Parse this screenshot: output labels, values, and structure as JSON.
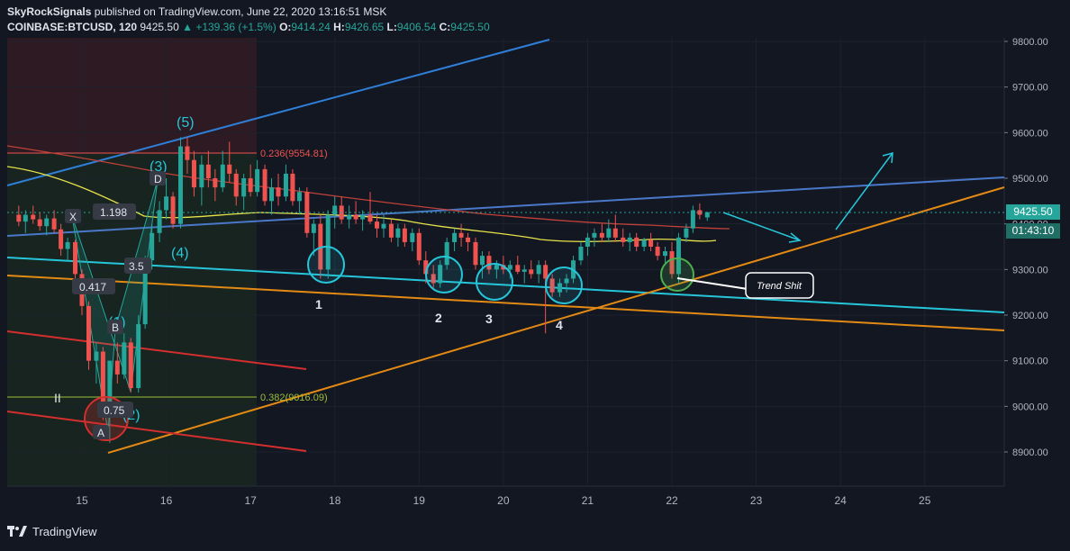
{
  "header": {
    "publisher": "SkyRockSignals",
    "published_text": "published on TradingView.com, June 22, 2020 13:16:51 MSK",
    "symbol": "COINBASE:BTCUSD, 120",
    "last": "9425.50",
    "change": "▲ +139.36 (+1.5%)",
    "o_label": "O:",
    "o": "9414.24",
    "h_label": "H:",
    "h": "9426.65",
    "l_label": "L:",
    "l": "9406.54",
    "c_label": "C:",
    "c": "9425.50"
  },
  "price_tags": {
    "last": "9425.50",
    "countdown": "01:43:10"
  },
  "footer": {
    "brand": "TradingView"
  },
  "annotations": {
    "fib_236": "0.236(9554.81)",
    "fib_382": "0.382(9016.09)",
    "wave5": "(5)",
    "wave3": "(3)",
    "wave4": "(4)",
    "wave1": "(1)",
    "wave2": "(2)",
    "pt_x": "X",
    "pt_d": "D",
    "pt_b": "B",
    "pt_a": "A",
    "r_1198": "1.198",
    "r_0417": "0.417",
    "r_35": "3.5",
    "r_075": "0.75",
    "roman_ii": "II",
    "touch1": "1",
    "touch2": "2",
    "touch3": "3",
    "touch4": "4",
    "callout": "Trend Shit"
  },
  "colors": {
    "background": "#131722",
    "up": "#26a69a",
    "down": "#ef5350",
    "cyan": "#00bcd4",
    "blue_line": "#2f7fd8",
    "orange_line": "#e38a14",
    "red_line": "#d32f2f",
    "yellow_ma": "#e6e24a"
  },
  "chart_data": {
    "type": "candlestick",
    "symbol": "COINBASE:BTCUSD",
    "interval": "120",
    "x_ticks": [
      "15",
      "16",
      "17",
      "18",
      "19",
      "20",
      "21",
      "22",
      "23",
      "24",
      "25"
    ],
    "y_ticks": [
      "8900.00",
      "9000.00",
      "9100.00",
      "9200.00",
      "9300.00",
      "9400.00",
      "9500.00",
      "9600.00",
      "9700.00",
      "9800.00"
    ],
    "ylim": [
      8830,
      9810
    ],
    "xlim": [
      14.2,
      25.9
    ],
    "last_price": 9425.5,
    "candles": [
      {
        "t": 14.25,
        "o": 9420,
        "h": 9440,
        "l": 9395,
        "c": 9405
      },
      {
        "t": 14.33,
        "o": 9405,
        "h": 9430,
        "l": 9380,
        "c": 9420
      },
      {
        "t": 14.42,
        "o": 9420,
        "h": 9440,
        "l": 9400,
        "c": 9410
      },
      {
        "t": 14.5,
        "o": 9410,
        "h": 9425,
        "l": 9385,
        "c": 9395
      },
      {
        "t": 14.58,
        "o": 9395,
        "h": 9420,
        "l": 9375,
        "c": 9412
      },
      {
        "t": 14.67,
        "o": 9412,
        "h": 9430,
        "l": 9380,
        "c": 9388
      },
      {
        "t": 14.75,
        "o": 9388,
        "h": 9400,
        "l": 9330,
        "c": 9345
      },
      {
        "t": 14.83,
        "o": 9345,
        "h": 9370,
        "l": 9320,
        "c": 9360
      },
      {
        "t": 14.92,
        "o": 9360,
        "h": 9365,
        "l": 9280,
        "c": 9290
      },
      {
        "t": 15.0,
        "o": 9290,
        "h": 9300,
        "l": 9200,
        "c": 9220
      },
      {
        "t": 15.08,
        "o": 9220,
        "h": 9230,
        "l": 9080,
        "c": 9100
      },
      {
        "t": 15.17,
        "o": 9100,
        "h": 9140,
        "l": 9050,
        "c": 9120
      },
      {
        "t": 15.25,
        "o": 9120,
        "h": 9130,
        "l": 8970,
        "c": 8990
      },
      {
        "t": 15.33,
        "o": 8990,
        "h": 9100,
        "l": 8920,
        "c": 9100
      },
      {
        "t": 15.42,
        "o": 9100,
        "h": 9140,
        "l": 9050,
        "c": 9070
      },
      {
        "t": 15.5,
        "o": 9070,
        "h": 9160,
        "l": 9060,
        "c": 9140
      },
      {
        "t": 15.58,
        "o": 9140,
        "h": 9150,
        "l": 9030,
        "c": 9040
      },
      {
        "t": 15.67,
        "o": 9040,
        "h": 9200,
        "l": 9030,
        "c": 9180
      },
      {
        "t": 15.75,
        "o": 9180,
        "h": 9330,
        "l": 9170,
        "c": 9320
      },
      {
        "t": 15.83,
        "o": 9320,
        "h": 9400,
        "l": 9300,
        "c": 9380
      },
      {
        "t": 15.92,
        "o": 9380,
        "h": 9450,
        "l": 9360,
        "c": 9430
      },
      {
        "t": 16.0,
        "o": 9430,
        "h": 9500,
        "l": 9410,
        "c": 9460
      },
      {
        "t": 16.08,
        "o": 9460,
        "h": 9470,
        "l": 9390,
        "c": 9400
      },
      {
        "t": 16.17,
        "o": 9400,
        "h": 9590,
        "l": 9390,
        "c": 9570
      },
      {
        "t": 16.25,
        "o": 9570,
        "h": 9590,
        "l": 9510,
        "c": 9540
      },
      {
        "t": 16.33,
        "o": 9540,
        "h": 9560,
        "l": 9460,
        "c": 9480
      },
      {
        "t": 16.42,
        "o": 9480,
        "h": 9550,
        "l": 9440,
        "c": 9530
      },
      {
        "t": 16.5,
        "o": 9530,
        "h": 9560,
        "l": 9480,
        "c": 9500
      },
      {
        "t": 16.58,
        "o": 9500,
        "h": 9520,
        "l": 9450,
        "c": 9480
      },
      {
        "t": 16.67,
        "o": 9480,
        "h": 9560,
        "l": 9470,
        "c": 9530
      },
      {
        "t": 16.75,
        "o": 9530,
        "h": 9580,
        "l": 9490,
        "c": 9510
      },
      {
        "t": 16.83,
        "o": 9510,
        "h": 9520,
        "l": 9440,
        "c": 9460
      },
      {
        "t": 16.92,
        "o": 9460,
        "h": 9510,
        "l": 9430,
        "c": 9500
      },
      {
        "t": 17.0,
        "o": 9500,
        "h": 9530,
        "l": 9460,
        "c": 9470
      },
      {
        "t": 17.08,
        "o": 9470,
        "h": 9540,
        "l": 9460,
        "c": 9520
      },
      {
        "t": 17.17,
        "o": 9520,
        "h": 9530,
        "l": 9440,
        "c": 9450
      },
      {
        "t": 17.25,
        "o": 9450,
        "h": 9500,
        "l": 9420,
        "c": 9480
      },
      {
        "t": 17.33,
        "o": 9480,
        "h": 9510,
        "l": 9440,
        "c": 9460
      },
      {
        "t": 17.42,
        "o": 9460,
        "h": 9530,
        "l": 9450,
        "c": 9510
      },
      {
        "t": 17.5,
        "o": 9510,
        "h": 9520,
        "l": 9440,
        "c": 9450
      },
      {
        "t": 17.58,
        "o": 9450,
        "h": 9480,
        "l": 9420,
        "c": 9470
      },
      {
        "t": 17.67,
        "o": 9470,
        "h": 9480,
        "l": 9370,
        "c": 9380
      },
      {
        "t": 17.75,
        "o": 9380,
        "h": 9410,
        "l": 9330,
        "c": 9400
      },
      {
        "t": 17.83,
        "o": 9400,
        "h": 9420,
        "l": 9280,
        "c": 9300
      },
      {
        "t": 17.92,
        "o": 9300,
        "h": 9430,
        "l": 9280,
        "c": 9420
      },
      {
        "t": 18.0,
        "o": 9420,
        "h": 9460,
        "l": 9390,
        "c": 9440
      },
      {
        "t": 18.08,
        "o": 9440,
        "h": 9460,
        "l": 9400,
        "c": 9410
      },
      {
        "t": 18.17,
        "o": 9410,
        "h": 9440,
        "l": 9390,
        "c": 9420
      },
      {
        "t": 18.25,
        "o": 9420,
        "h": 9450,
        "l": 9400,
        "c": 9410
      },
      {
        "t": 18.33,
        "o": 9410,
        "h": 9430,
        "l": 9385,
        "c": 9420
      },
      {
        "t": 18.42,
        "o": 9420,
        "h": 9470,
        "l": 9400,
        "c": 9405
      },
      {
        "t": 18.5,
        "o": 9405,
        "h": 9420,
        "l": 9370,
        "c": 9390
      },
      {
        "t": 18.58,
        "o": 9390,
        "h": 9420,
        "l": 9370,
        "c": 9400
      },
      {
        "t": 18.67,
        "o": 9400,
        "h": 9410,
        "l": 9360,
        "c": 9370
      },
      {
        "t": 18.75,
        "o": 9370,
        "h": 9400,
        "l": 9350,
        "c": 9390
      },
      {
        "t": 18.83,
        "o": 9390,
        "h": 9400,
        "l": 9350,
        "c": 9360
      },
      {
        "t": 18.92,
        "o": 9360,
        "h": 9390,
        "l": 9340,
        "c": 9380
      },
      {
        "t": 19.0,
        "o": 9380,
        "h": 9390,
        "l": 9310,
        "c": 9320
      },
      {
        "t": 19.08,
        "o": 9320,
        "h": 9340,
        "l": 9270,
        "c": 9290
      },
      {
        "t": 19.17,
        "o": 9290,
        "h": 9310,
        "l": 9260,
        "c": 9270
      },
      {
        "t": 19.25,
        "o": 9270,
        "h": 9320,
        "l": 9260,
        "c": 9310
      },
      {
        "t": 19.33,
        "o": 9310,
        "h": 9370,
        "l": 9300,
        "c": 9360
      },
      {
        "t": 19.42,
        "o": 9360,
        "h": 9390,
        "l": 9340,
        "c": 9380
      },
      {
        "t": 19.5,
        "o": 9380,
        "h": 9400,
        "l": 9350,
        "c": 9370
      },
      {
        "t": 19.58,
        "o": 9370,
        "h": 9380,
        "l": 9340,
        "c": 9360
      },
      {
        "t": 19.67,
        "o": 9360,
        "h": 9370,
        "l": 9300,
        "c": 9310
      },
      {
        "t": 19.75,
        "o": 9310,
        "h": 9340,
        "l": 9280,
        "c": 9330
      },
      {
        "t": 19.83,
        "o": 9330,
        "h": 9340,
        "l": 9290,
        "c": 9300
      },
      {
        "t": 19.92,
        "o": 9300,
        "h": 9320,
        "l": 9280,
        "c": 9310
      },
      {
        "t": 20.0,
        "o": 9310,
        "h": 9330,
        "l": 9290,
        "c": 9300
      },
      {
        "t": 20.08,
        "o": 9300,
        "h": 9320,
        "l": 9280,
        "c": 9310
      },
      {
        "t": 20.17,
        "o": 9310,
        "h": 9330,
        "l": 9290,
        "c": 9295
      },
      {
        "t": 20.25,
        "o": 9295,
        "h": 9310,
        "l": 9270,
        "c": 9300
      },
      {
        "t": 20.33,
        "o": 9300,
        "h": 9320,
        "l": 9280,
        "c": 9290
      },
      {
        "t": 20.42,
        "o": 9290,
        "h": 9320,
        "l": 9270,
        "c": 9310
      },
      {
        "t": 20.5,
        "o": 9310,
        "h": 9320,
        "l": 9160,
        "c": 9280
      },
      {
        "t": 20.58,
        "o": 9280,
        "h": 9290,
        "l": 9240,
        "c": 9250
      },
      {
        "t": 20.67,
        "o": 9250,
        "h": 9280,
        "l": 9240,
        "c": 9270
      },
      {
        "t": 20.75,
        "o": 9270,
        "h": 9290,
        "l": 9250,
        "c": 9280
      },
      {
        "t": 20.83,
        "o": 9280,
        "h": 9330,
        "l": 9270,
        "c": 9320
      },
      {
        "t": 20.92,
        "o": 9320,
        "h": 9360,
        "l": 9310,
        "c": 9350
      },
      {
        "t": 21.0,
        "o": 9350,
        "h": 9380,
        "l": 9330,
        "c": 9370
      },
      {
        "t": 21.08,
        "o": 9370,
        "h": 9390,
        "l": 9350,
        "c": 9380
      },
      {
        "t": 21.17,
        "o": 9380,
        "h": 9400,
        "l": 9360,
        "c": 9370
      },
      {
        "t": 21.25,
        "o": 9370,
        "h": 9410,
        "l": 9360,
        "c": 9390
      },
      {
        "t": 21.33,
        "o": 9390,
        "h": 9420,
        "l": 9360,
        "c": 9370
      },
      {
        "t": 21.42,
        "o": 9370,
        "h": 9390,
        "l": 9350,
        "c": 9360
      },
      {
        "t": 21.5,
        "o": 9360,
        "h": 9380,
        "l": 9340,
        "c": 9370
      },
      {
        "t": 21.58,
        "o": 9370,
        "h": 9380,
        "l": 9340,
        "c": 9350
      },
      {
        "t": 21.67,
        "o": 9350,
        "h": 9370,
        "l": 9340,
        "c": 9365
      },
      {
        "t": 21.75,
        "o": 9365,
        "h": 9380,
        "l": 9340,
        "c": 9350
      },
      {
        "t": 21.83,
        "o": 9350,
        "h": 9360,
        "l": 9320,
        "c": 9330
      },
      {
        "t": 21.92,
        "o": 9330,
        "h": 9350,
        "l": 9310,
        "c": 9340
      },
      {
        "t": 22.0,
        "o": 9340,
        "h": 9360,
        "l": 9280,
        "c": 9290
      },
      {
        "t": 22.08,
        "o": 9290,
        "h": 9380,
        "l": 9270,
        "c": 9370
      },
      {
        "t": 22.17,
        "o": 9370,
        "h": 9400,
        "l": 9360,
        "c": 9390
      },
      {
        "t": 22.25,
        "o": 9390,
        "h": 9440,
        "l": 9380,
        "c": 9430
      },
      {
        "t": 22.33,
        "o": 9430,
        "h": 9445,
        "l": 9410,
        "c": 9420
      },
      {
        "t": 22.42,
        "o": 9414.24,
        "h": 9426.65,
        "l": 9406.54,
        "c": 9425.5
      }
    ],
    "fib_levels": [
      {
        "label": "0.236",
        "price": 9554.81
      },
      {
        "label": "0.382",
        "price": 9016.09
      }
    ]
  }
}
